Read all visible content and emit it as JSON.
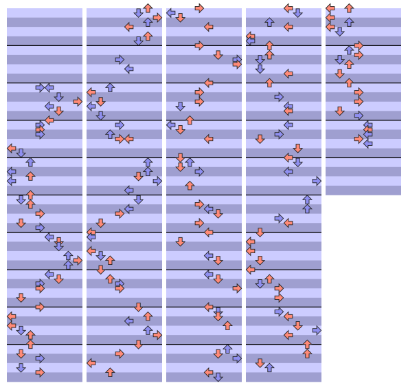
{
  "step_chart": {
    "measures_per_column": [
      10,
      10,
      10,
      10,
      5
    ],
    "notes": [
      [
        2,
        1,
        3
      ],
      [
        2,
        1,
        4
      ],
      [
        2,
        3,
        5
      ],
      [
        2,
        4,
        7
      ],
      [
        2,
        5,
        4
      ],
      [
        2,
        6,
        5
      ],
      [
        3,
        0,
        4
      ],
      [
        3,
        1,
        3
      ],
      [
        3,
        2,
        3
      ],
      [
        3,
        3,
        3
      ],
      [
        3,
        6,
        0
      ],
      [
        3,
        7,
        1
      ],
      [
        4,
        1,
        2
      ],
      [
        4,
        3,
        0
      ],
      [
        4,
        4,
        2
      ],
      [
        4,
        5,
        0
      ],
      [
        5,
        0,
        2
      ],
      [
        5,
        1,
        1
      ],
      [
        5,
        2,
        2
      ],
      [
        5,
        4,
        3
      ],
      [
        5,
        6,
        1
      ],
      [
        5,
        7,
        3
      ],
      [
        6,
        1,
        4
      ],
      [
        6,
        2,
        5
      ],
      [
        6,
        3,
        5
      ],
      [
        6,
        5,
        6
      ],
      [
        6,
        6,
        7
      ],
      [
        6,
        7,
        6
      ],
      [
        7,
        1,
        4
      ],
      [
        7,
        2,
        5
      ],
      [
        7,
        3,
        3
      ],
      [
        7,
        4,
        3
      ],
      [
        7,
        6,
        1
      ],
      [
        8,
        0,
        3
      ],
      [
        8,
        2,
        0
      ],
      [
        8,
        4,
        0
      ],
      [
        8,
        5,
        1
      ],
      [
        8,
        6,
        2
      ],
      [
        9,
        0,
        2
      ],
      [
        9,
        2,
        1
      ],
      [
        9,
        3,
        3
      ],
      [
        9,
        5,
        1
      ],
      [
        9,
        6,
        3
      ],
      [
        10,
        0,
        6
      ],
      [
        10,
        1,
        5
      ],
      [
        10,
        2,
        7
      ],
      [
        10,
        3,
        6
      ],
      [
        10,
        4,
        4
      ],
      [
        10,
        6,
        6
      ],
      [
        10,
        7,
        5
      ],
      [
        11,
        3,
        3
      ],
      [
        11,
        5,
        4
      ],
      [
        12,
        1,
        2
      ],
      [
        12,
        2,
        0
      ],
      [
        12,
        4,
        1
      ],
      [
        12,
        5,
        0
      ],
      [
        12,
        7,
        1
      ],
      [
        13,
        1,
        3
      ],
      [
        13,
        3,
        2
      ],
      [
        13,
        4,
        3
      ],
      [
        13,
        4,
        4
      ],
      [
        14,
        1,
        6
      ],
      [
        14,
        3,
        6
      ],
      [
        14,
        4,
        5
      ],
      [
        14,
        5,
        7
      ],
      [
        14,
        7,
        4
      ],
      [
        15,
        1,
        5
      ],
      [
        15,
        3,
        4
      ],
      [
        15,
        4,
        3
      ],
      [
        15,
        6,
        1
      ],
      [
        16,
        0,
        0
      ],
      [
        16,
        1,
        0
      ],
      [
        16,
        4,
        0
      ],
      [
        16,
        5,
        1
      ],
      [
        16,
        6,
        2
      ],
      [
        17,
        0,
        1
      ],
      [
        17,
        2,
        2
      ],
      [
        17,
        3,
        3
      ],
      [
        17,
        4,
        3
      ],
      [
        18,
        0,
        5
      ],
      [
        18,
        2,
        6
      ],
      [
        18,
        3,
        4
      ],
      [
        18,
        5,
        6
      ],
      [
        18,
        6,
        7
      ],
      [
        19,
        0,
        5
      ],
      [
        19,
        2,
        3
      ],
      [
        19,
        4,
        0
      ],
      [
        19,
        6,
        2
      ],
      [
        20,
        0,
        3
      ],
      [
        20,
        1,
        0
      ],
      [
        20,
        2,
        1
      ],
      [
        20,
        4,
        4
      ],
      [
        21,
        0,
        3
      ],
      [
        21,
        2,
        5
      ],
      [
        21,
        3,
        7
      ],
      [
        21,
        4,
        7
      ],
      [
        22,
        0,
        4
      ],
      [
        22,
        2,
        3
      ],
      [
        22,
        4,
        3
      ],
      [
        22,
        5,
        1
      ],
      [
        23,
        0,
        2
      ],
      [
        23,
        1,
        0
      ],
      [
        23,
        2,
        1
      ],
      [
        23,
        4,
        4
      ],
      [
        24,
        0,
        1
      ],
      [
        24,
        1,
        2
      ],
      [
        24,
        2,
        1
      ],
      [
        24,
        3,
        3
      ],
      [
        24,
        6,
        2
      ],
      [
        25,
        2,
        3
      ],
      [
        25,
        3,
        4
      ],
      [
        25,
        4,
        5
      ],
      [
        25,
        6,
        3
      ],
      [
        26,
        0,
        4
      ],
      [
        26,
        2,
        1
      ],
      [
        26,
        5,
        4
      ],
      [
        26,
        6,
        5
      ],
      [
        27,
        1,
        4
      ],
      [
        27,
        2,
        5
      ],
      [
        27,
        4,
        7
      ],
      [
        28,
        0,
        4
      ],
      [
        28,
        1,
        5
      ],
      [
        28,
        2,
        5
      ],
      [
        28,
        4,
        6
      ],
      [
        29,
        1,
        6
      ],
      [
        29,
        2,
        5
      ],
      [
        29,
        3,
        7
      ],
      [
        29,
        6,
        4
      ],
      [
        29,
        7,
        5
      ],
      [
        30,
        0,
        4
      ],
      [
        30,
        1,
        5
      ],
      [
        30,
        3,
        2
      ],
      [
        30,
        4,
        4
      ],
      [
        30,
        6,
        0
      ],
      [
        30,
        7,
        0
      ],
      [
        31,
        0,
        2
      ],
      [
        31,
        2,
        2
      ],
      [
        31,
        3,
        1
      ],
      [
        31,
        5,
        1
      ],
      [
        31,
        6,
        4
      ],
      [
        32,
        0,
        2
      ],
      [
        32,
        3,
        3
      ],
      [
        32,
        5,
        4
      ],
      [
        32,
        6,
        4
      ],
      [
        33,
        1,
        4
      ],
      [
        33,
        3,
        3
      ],
      [
        33,
        4,
        1
      ],
      [
        33,
        6,
        5
      ],
      [
        34,
        0,
        4
      ],
      [
        34,
        1,
        5
      ],
      [
        34,
        3,
        4
      ],
      [
        34,
        5,
        7
      ],
      [
        35,
        1,
        6
      ],
      [
        35,
        3,
        6
      ],
      [
        35,
        5,
        3
      ],
      [
        35,
        6,
        4
      ],
      [
        36,
        0,
        1
      ],
      [
        36,
        2,
        0
      ],
      [
        36,
        4,
        0
      ],
      [
        36,
        6,
        1
      ],
      [
        37,
        0,
        0
      ],
      [
        37,
        2,
        2
      ],
      [
        37,
        3,
        1
      ],
      [
        37,
        4,
        3
      ],
      [
        37,
        6,
        3
      ],
      [
        38,
        1,
        3
      ],
      [
        38,
        2,
        4
      ],
      [
        38,
        4,
        5
      ],
      [
        38,
        5,
        7
      ],
      [
        38,
        6,
        4
      ],
      [
        39,
        0,
        6
      ],
      [
        39,
        2,
        6
      ],
      [
        39,
        4,
        1
      ],
      [
        39,
        5,
        2
      ],
      [
        40,
        0,
        0
      ],
      [
        40,
        0,
        2
      ],
      [
        40,
        2,
        0
      ],
      [
        40,
        3,
        2
      ],
      [
        40,
        4,
        0
      ],
      [
        40,
        5,
        1
      ],
      [
        41,
        0,
        3
      ],
      [
        41,
        1,
        2
      ],
      [
        41,
        2,
        3
      ],
      [
        41,
        3,
        1
      ],
      [
        41,
        4,
        2
      ],
      [
        41,
        6,
        1
      ],
      [
        42,
        0,
        2
      ],
      [
        42,
        2,
        3
      ],
      [
        42,
        4,
        3
      ],
      [
        42,
        6,
        1
      ],
      [
        42,
        7,
        3
      ],
      [
        43,
        1,
        4
      ],
      [
        43,
        2,
        4
      ],
      [
        43,
        3,
        4
      ],
      [
        43,
        4,
        3
      ],
      [
        43,
        5,
        4
      ]
    ]
  }
}
